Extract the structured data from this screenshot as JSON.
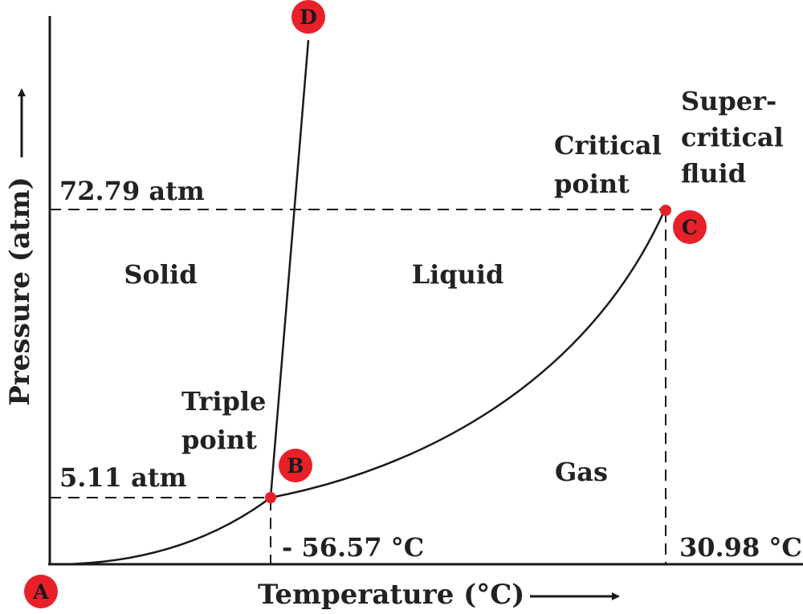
{
  "diagram": {
    "axes": {
      "x_label": "Temperature (°C)",
      "y_label": "Pressure (atm)"
    },
    "regions": {
      "solid": "Solid",
      "liquid": "Liquid",
      "gas": "Gas",
      "supercritical": [
        "Super-",
        "critical",
        "fluid"
      ]
    },
    "annotations": {
      "critical_point": [
        "Critical",
        "point"
      ],
      "triple_point": [
        "Triple",
        "point"
      ]
    },
    "values": {
      "critical_pressure": "72.79 atm",
      "triple_pressure": "5.11 atm",
      "triple_temperature": "- 56.57 °C",
      "critical_temperature": "30.98 °C"
    },
    "points": {
      "a": "A",
      "b": "B",
      "c": "C",
      "d": "D"
    },
    "colors": {
      "point_fill": "#e8202a",
      "line": "#1a1a1a"
    }
  }
}
